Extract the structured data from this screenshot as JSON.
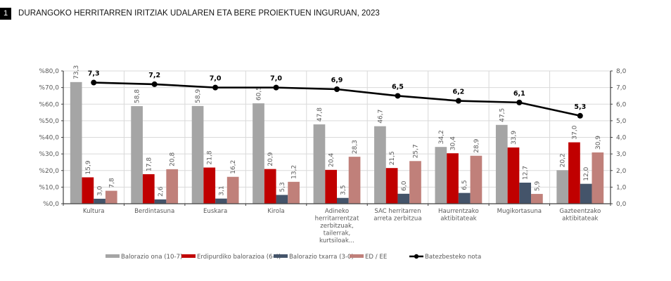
{
  "header": {
    "figure_number": "1",
    "title": "DURANGOKO HERRITARREN IRITZIAK UDALAREN ETA BERE PROIEKTUEN INGURUAN, 2023"
  },
  "chart_data": {
    "type": "bar",
    "title": "DURANGOKO HERRITARREN IRITZIAK UDALAREN ETA BERE PROIEKTUEN INGURUAN, 2023",
    "xlabel": "",
    "ylabel": "",
    "ylim": [
      0,
      80
    ],
    "y2lim": [
      0,
      8
    ],
    "grid": true,
    "legend_position": "bottom",
    "y_ticks": [
      "%0,0",
      "%10,0",
      "%20,0",
      "%30,0",
      "%40,0",
      "%50,0",
      "%60,0",
      "%70,0",
      "%80,0"
    ],
    "y2_ticks": [
      "0,0",
      "1,0",
      "2,0",
      "3,0",
      "4,0",
      "5,0",
      "6,0",
      "7,0",
      "8,0"
    ],
    "categories": [
      [
        "Kultura"
      ],
      [
        "Berdintasuna"
      ],
      [
        "Euskara"
      ],
      [
        "Kirola"
      ],
      [
        "Adineko",
        "herritarrentzat",
        "zerbitzuak,",
        "tailerrak,",
        "kurtsiloak..."
      ],
      [
        "SAC herritarren",
        "arreta zerbitzua"
      ],
      [
        "Haurrentzako",
        "aktibitateak"
      ],
      [
        "Mugikortasuna"
      ],
      [
        "Gazteentzako",
        "aktibitateak"
      ]
    ],
    "series": [
      {
        "name": "Balorazio ona (10-7)",
        "type": "bar",
        "axis": "left",
        "color": "#a5a5a5",
        "values": [
          73.3,
          58.8,
          58.9,
          60.5,
          47.8,
          46.7,
          34.2,
          47.5,
          20.2
        ],
        "labels": [
          "73,3",
          "58,8",
          "58,9",
          "60,5",
          "47,8",
          "46,7",
          "34,2",
          "47,5",
          "20,2"
        ]
      },
      {
        "name": "Erdipurdiko balorazioa (6-4)",
        "type": "bar",
        "axis": "left",
        "color": "#c00000",
        "values": [
          15.9,
          17.8,
          21.8,
          20.9,
          20.4,
          21.5,
          30.4,
          33.9,
          37.0
        ],
        "labels": [
          "15,9",
          "17,8",
          "21,8",
          "20,9",
          "20,4",
          "21,5",
          "30,4",
          "33,9",
          "37,0"
        ]
      },
      {
        "name": "Balorazio txarra (3-0)",
        "type": "bar",
        "axis": "left",
        "color": "#44546a",
        "values": [
          3.0,
          2.6,
          3.1,
          5.3,
          3.5,
          6.0,
          6.5,
          12.7,
          12.0
        ],
        "labels": [
          "3,0",
          "2,6",
          "3,1",
          "5,3",
          "3,5",
          "6,0",
          "6,5",
          "12,7",
          "12,0"
        ]
      },
      {
        "name": "ED / EE",
        "type": "bar",
        "axis": "left",
        "color": "#c0807a",
        "values": [
          7.8,
          20.8,
          16.2,
          13.2,
          28.3,
          25.7,
          28.9,
          5.9,
          30.9
        ],
        "labels": [
          "7,8",
          "20,8",
          "16,2",
          "13,2",
          "28,3",
          "25,7",
          "28,9",
          "5,9",
          "30,9"
        ]
      },
      {
        "name": "Batezbesteko nota",
        "type": "line",
        "axis": "right",
        "color": "#000000",
        "values": [
          7.3,
          7.2,
          7.0,
          7.0,
          6.9,
          6.5,
          6.2,
          6.1,
          5.3
        ],
        "labels": [
          "7,3",
          "7,2",
          "7,0",
          "7,0",
          "6,9",
          "6,5",
          "6,2",
          "6,1",
          "5,3"
        ]
      }
    ]
  }
}
